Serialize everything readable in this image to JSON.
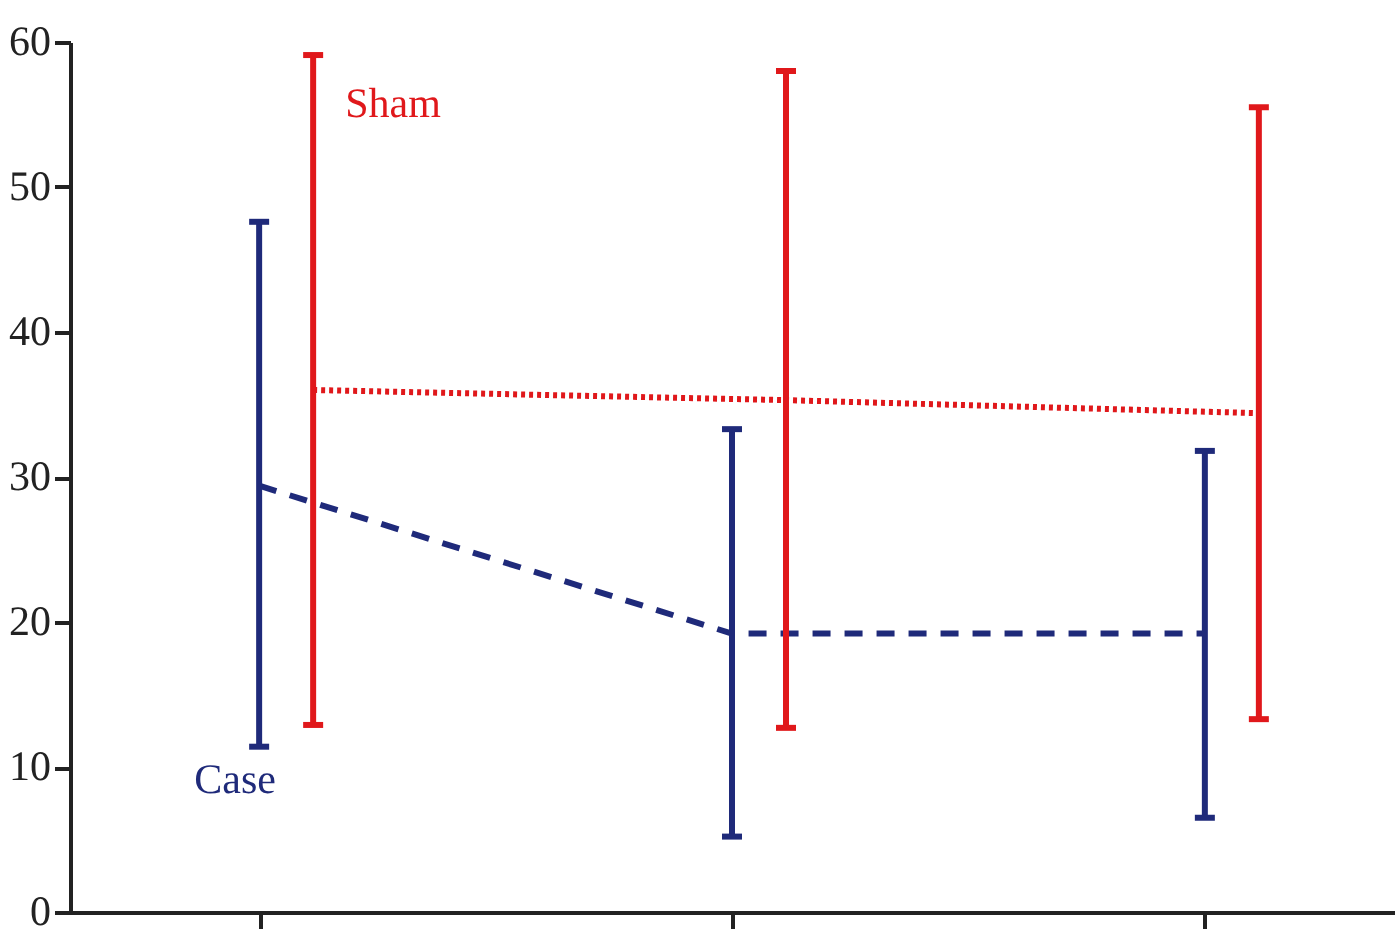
{
  "chart_data": {
    "type": "line",
    "categories": [
      null,
      null,
      null
    ],
    "ylim": [
      0,
      60
    ],
    "yticks": [
      0,
      10,
      20,
      30,
      40,
      50,
      60
    ],
    "grid": false,
    "tick_labels": "y",
    "marker": "none",
    "series": [
      {
        "name": "Case",
        "color": "#1f2a7a",
        "line_style": "dashed",
        "values": [
          29.4,
          19.2,
          19.2
        ],
        "errors": [
          [
            11.4,
            47.6
          ],
          [
            5.2,
            33.3
          ],
          [
            6.5,
            31.8
          ]
        ]
      },
      {
        "name": "Sham",
        "color": "#e0181b",
        "line_style": "dotted",
        "values": [
          36.0,
          35.3,
          34.4
        ],
        "errors": [
          [
            12.9,
            59.1
          ],
          [
            12.7,
            58.0
          ],
          [
            13.3,
            55.5
          ]
        ]
      }
    ]
  }
}
